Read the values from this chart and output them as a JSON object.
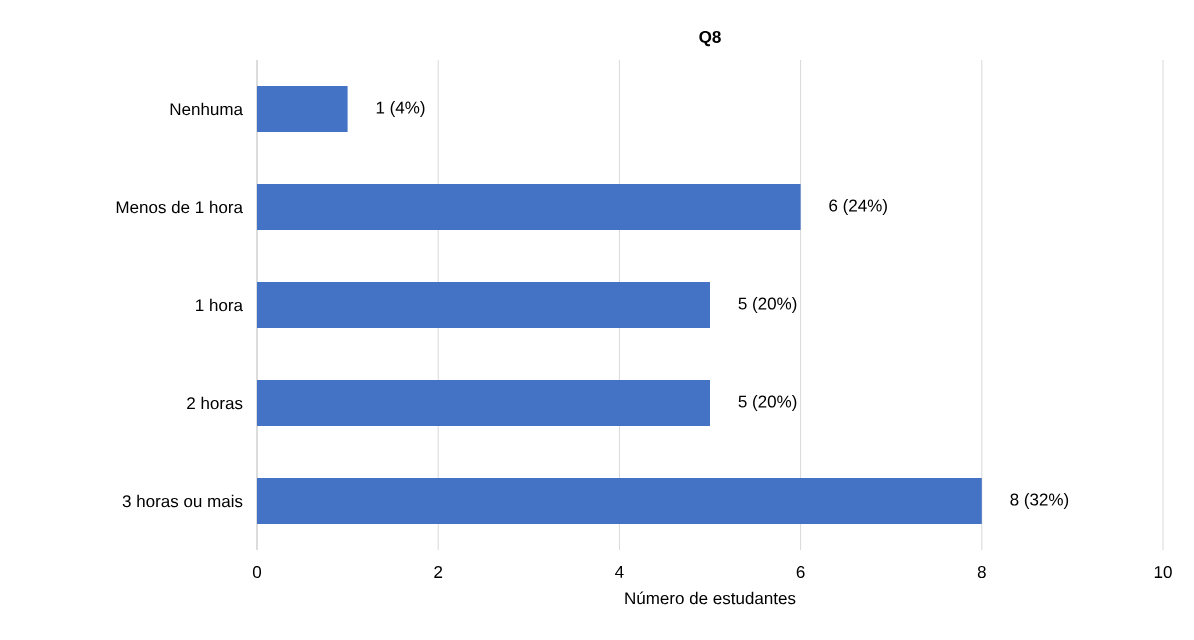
{
  "chart_data": {
    "type": "bar",
    "orientation": "horizontal",
    "title": "Q8",
    "xlabel": "Número de estudantes",
    "categories": [
      "Nenhuma",
      "Menos de 1 hora",
      "1 hora",
      "2 horas",
      "3 horas ou mais"
    ],
    "values": [
      1,
      6,
      5,
      5,
      8
    ],
    "value_labels": [
      "1 (4%)",
      "6 (24%)",
      "5 (20%)",
      "5 (20%)",
      "8 (32%)"
    ],
    "color": "#4472c4",
    "xlim": [
      0,
      10
    ],
    "xticks": [
      0,
      2,
      4,
      6,
      8,
      10
    ],
    "grid": "x"
  }
}
